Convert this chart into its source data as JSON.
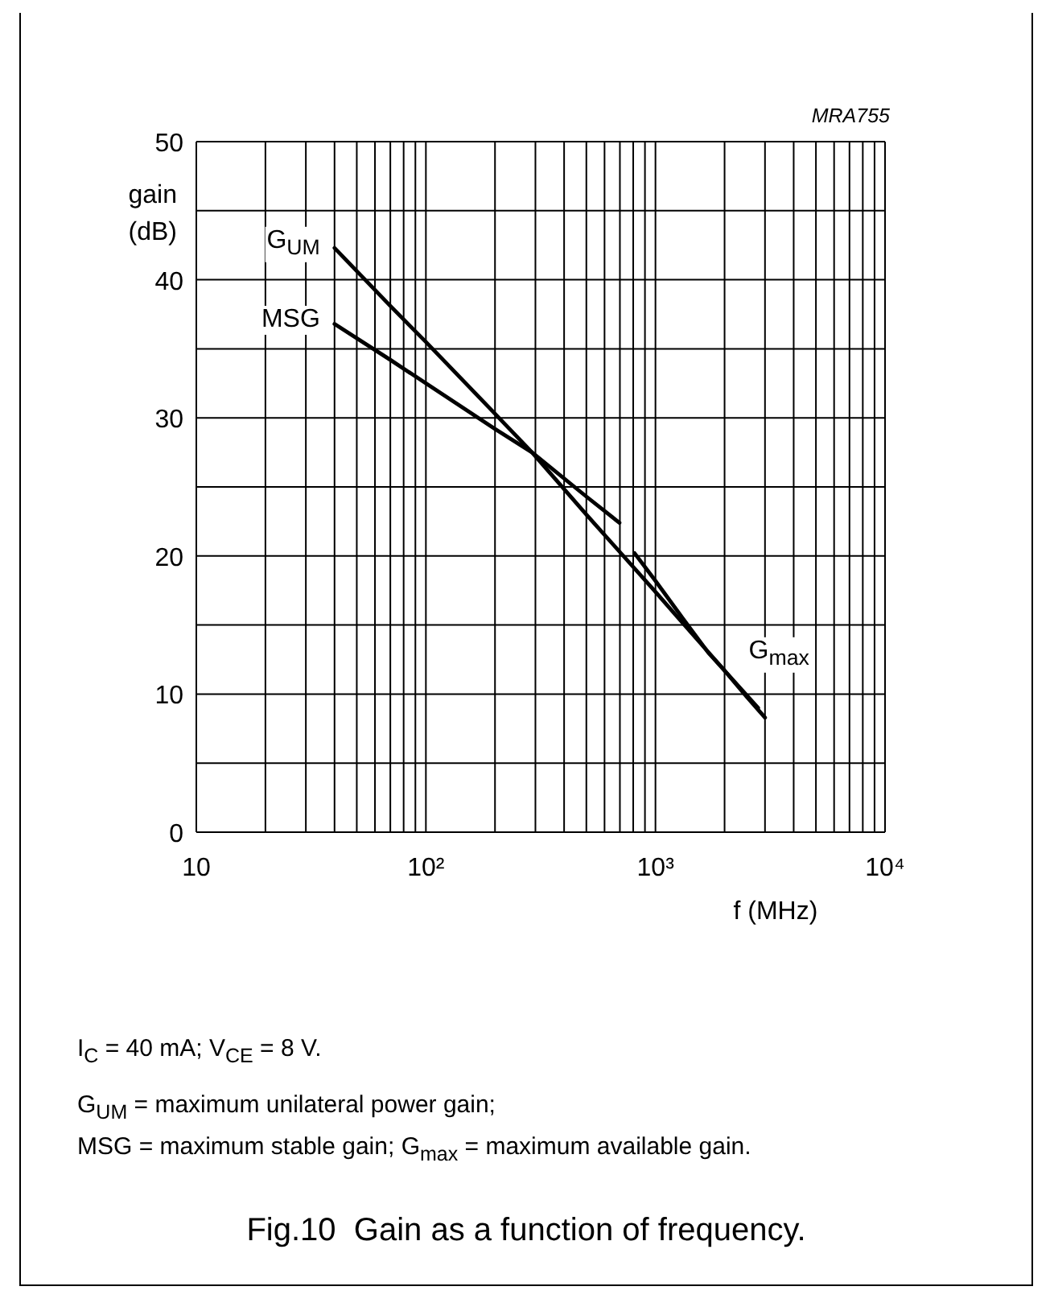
{
  "chart_data": {
    "type": "line",
    "title": "Fig.10  Gain as a function of frequency.",
    "xlabel": "f (MHz)",
    "ylabel": "gain (dB)",
    "annotations": [
      "MRA755",
      "I$_{C}$ = 40 mA; V$_{CE}$ = 8 V.",
      "G$_{UM}$ = maximum unilateral power gain;",
      "MSG = maximum stable gain; G$_{max}$ = maximum available gain."
    ],
    "series": [
      {
        "name": "G$_{UM}$",
        "color": "#000000",
        "x": [
          40,
          70,
          100,
          200,
          290,
          500,
          1000,
          1370,
          2000,
          2800
        ],
        "values": [
          42.3,
          38.1,
          35.5,
          30.3,
          27.5,
          23.0,
          17.4,
          14.8,
          11.7,
          9.0
        ]
      },
      {
        "name": "MSG",
        "color": "#000000",
        "x": [
          40,
          70,
          100,
          200,
          290,
          500,
          697
        ],
        "values": [
          36.8,
          34.2,
          32.5,
          29.2,
          27.5,
          24.3,
          22.4
        ]
      },
      {
        "name": "G$_{max}$",
        "color": "#000000",
        "x": [
          811,
          1000,
          1300,
          1698,
          2000,
          2500,
          3000
        ],
        "values": [
          20.2,
          18.2,
          15.6,
          13.0,
          11.7,
          9.8,
          8.3
        ]
      }
    ],
    "xlim": [
      10,
      10000
    ],
    "ylim": [
      0,
      50
    ],
    "xticks": [
      {
        "value": 10,
        "label": "10"
      },
      {
        "value": 20,
        "label": null
      },
      {
        "value": 30,
        "label": null
      },
      {
        "value": 40,
        "label": null
      },
      {
        "value": 50,
        "label": null
      },
      {
        "value": 60,
        "label": null
      },
      {
        "value": 70,
        "label": null
      },
      {
        "value": 80,
        "label": null
      },
      {
        "value": 90,
        "label": null
      },
      {
        "value": 100,
        "label": "10²"
      },
      {
        "value": 200,
        "label": null
      },
      {
        "value": 300,
        "label": null
      },
      {
        "value": 400,
        "label": null
      },
      {
        "value": 500,
        "label": null
      },
      {
        "value": 600,
        "label": null
      },
      {
        "value": 700,
        "label": null
      },
      {
        "value": 800,
        "label": null
      },
      {
        "value": 900,
        "label": null
      },
      {
        "value": 1000,
        "label": "10³"
      },
      {
        "value": 2000,
        "label": null
      },
      {
        "value": 3000,
        "label": null
      },
      {
        "value": 4000,
        "label": null
      },
      {
        "value": 5000,
        "label": null
      },
      {
        "value": 6000,
        "label": null
      },
      {
        "value": 7000,
        "label": null
      },
      {
        "value": 8000,
        "label": null
      },
      {
        "value": 9000,
        "label": null
      },
      {
        "value": 10000,
        "label": "10⁴"
      }
    ],
    "yticks": [
      0,
      {
        "value": 5,
        "label": null
      },
      10,
      {
        "value": 15,
        "label": null
      },
      20,
      {
        "value": 25,
        "label": null
      },
      30,
      {
        "value": 35,
        "label": null
      },
      40,
      {
        "value": 45,
        "label": null
      },
      50
    ],
    "log": "x",
    "grid": true
  }
}
